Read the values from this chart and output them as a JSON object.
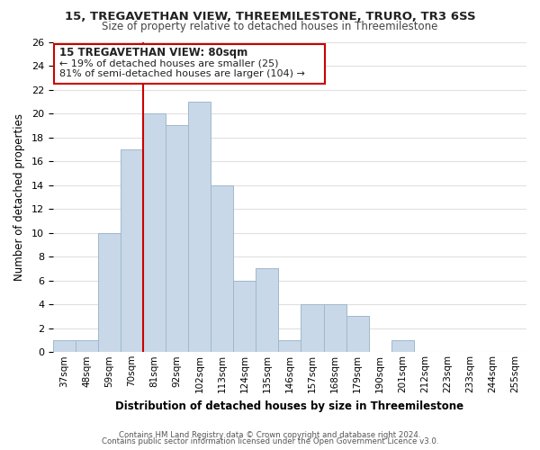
{
  "title": "15, TREGAVETHAN VIEW, THREEMILESTONE, TRURO, TR3 6SS",
  "subtitle": "Size of property relative to detached houses in Threemilestone",
  "xlabel": "Distribution of detached houses by size in Threemilestone",
  "ylabel": "Number of detached properties",
  "footer_line1": "Contains HM Land Registry data © Crown copyright and database right 2024.",
  "footer_line2": "Contains public sector information licensed under the Open Government Licence v3.0.",
  "bin_labels": [
    "37sqm",
    "48sqm",
    "59sqm",
    "70sqm",
    "81sqm",
    "92sqm",
    "102sqm",
    "113sqm",
    "124sqm",
    "135sqm",
    "146sqm",
    "157sqm",
    "168sqm",
    "179sqm",
    "190sqm",
    "201sqm",
    "212sqm",
    "223sqm",
    "233sqm",
    "244sqm",
    "255sqm"
  ],
  "bar_heights": [
    1,
    1,
    10,
    17,
    20,
    19,
    21,
    14,
    6,
    7,
    1,
    4,
    4,
    3,
    0,
    1,
    0,
    0,
    0,
    0,
    0
  ],
  "bar_color": "#c8d8e8",
  "bar_edge_color": "#a0b8cc",
  "grid_color": "#e0e0e0",
  "vline_x_index": 4,
  "vline_color": "#cc0000",
  "annotation_title": "15 TREGAVETHAN VIEW: 80sqm",
  "annotation_line1": "← 19% of detached houses are smaller (25)",
  "annotation_line2": "81% of semi-detached houses are larger (104) →",
  "annotation_box_color": "#ffffff",
  "annotation_box_edge": "#cc0000",
  "ylim": [
    0,
    26
  ],
  "yticks": [
    0,
    2,
    4,
    6,
    8,
    10,
    12,
    14,
    16,
    18,
    20,
    22,
    24,
    26
  ]
}
